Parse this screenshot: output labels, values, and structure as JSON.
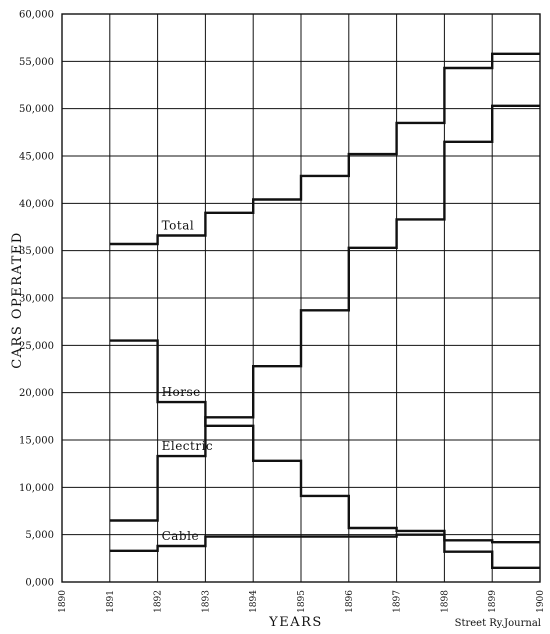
{
  "chart_data": {
    "type": "line",
    "step": true,
    "xlabel": "YEARS",
    "ylabel": "CARS OPERATED",
    "ylim": [
      0,
      60000
    ],
    "y_ticks": [
      0,
      5000,
      10000,
      15000,
      20000,
      25000,
      30000,
      35000,
      40000,
      45000,
      50000,
      55000,
      60000
    ],
    "y_tick_labels": [
      "0,000",
      "5,000",
      "10,000",
      "15,000",
      "20,000",
      "25,000",
      "30,000",
      "35,000",
      "40,000",
      "45,000",
      "50,000",
      "55,000",
      "60,000"
    ],
    "x_tick_labels": [
      "1890",
      "1891",
      "1892",
      "1893",
      "1894",
      "1895",
      "1896",
      "1897",
      "1898",
      "1899",
      "1900"
    ],
    "grid": true,
    "credit": "Street Ry.Journal",
    "series": [
      {
        "name": "Total",
        "x_start": [
          "1891",
          "1892",
          "1893",
          "1894",
          "1895",
          "1896",
          "1897",
          "1898",
          "1899"
        ],
        "values": [
          35700,
          36600,
          39000,
          40400,
          42900,
          45200,
          48500,
          54300,
          55800
        ]
      },
      {
        "name": "Horse",
        "x_start": [
          "1891",
          "1892",
          "1893",
          "1894",
          "1895",
          "1896",
          "1897",
          "1898",
          "1899"
        ],
        "values": [
          25500,
          19000,
          16500,
          12800,
          9100,
          5700,
          5400,
          4400,
          4200
        ]
      },
      {
        "name": "Electric",
        "x_start": [
          "1891",
          "1892",
          "1893",
          "1894",
          "1895",
          "1896",
          "1897",
          "1898",
          "1899"
        ],
        "values": [
          6500,
          13300,
          17400,
          22800,
          28700,
          35300,
          38300,
          46500,
          50300
        ]
      },
      {
        "name": "Cable",
        "x_start": [
          "1891",
          "1892",
          "1893",
          "1894",
          "1895",
          "1896",
          "1897",
          "1898",
          "1899"
        ],
        "values": [
          3300,
          3800,
          4800,
          4800,
          4800,
          4800,
          5000,
          3200,
          1500
        ]
      }
    ]
  }
}
